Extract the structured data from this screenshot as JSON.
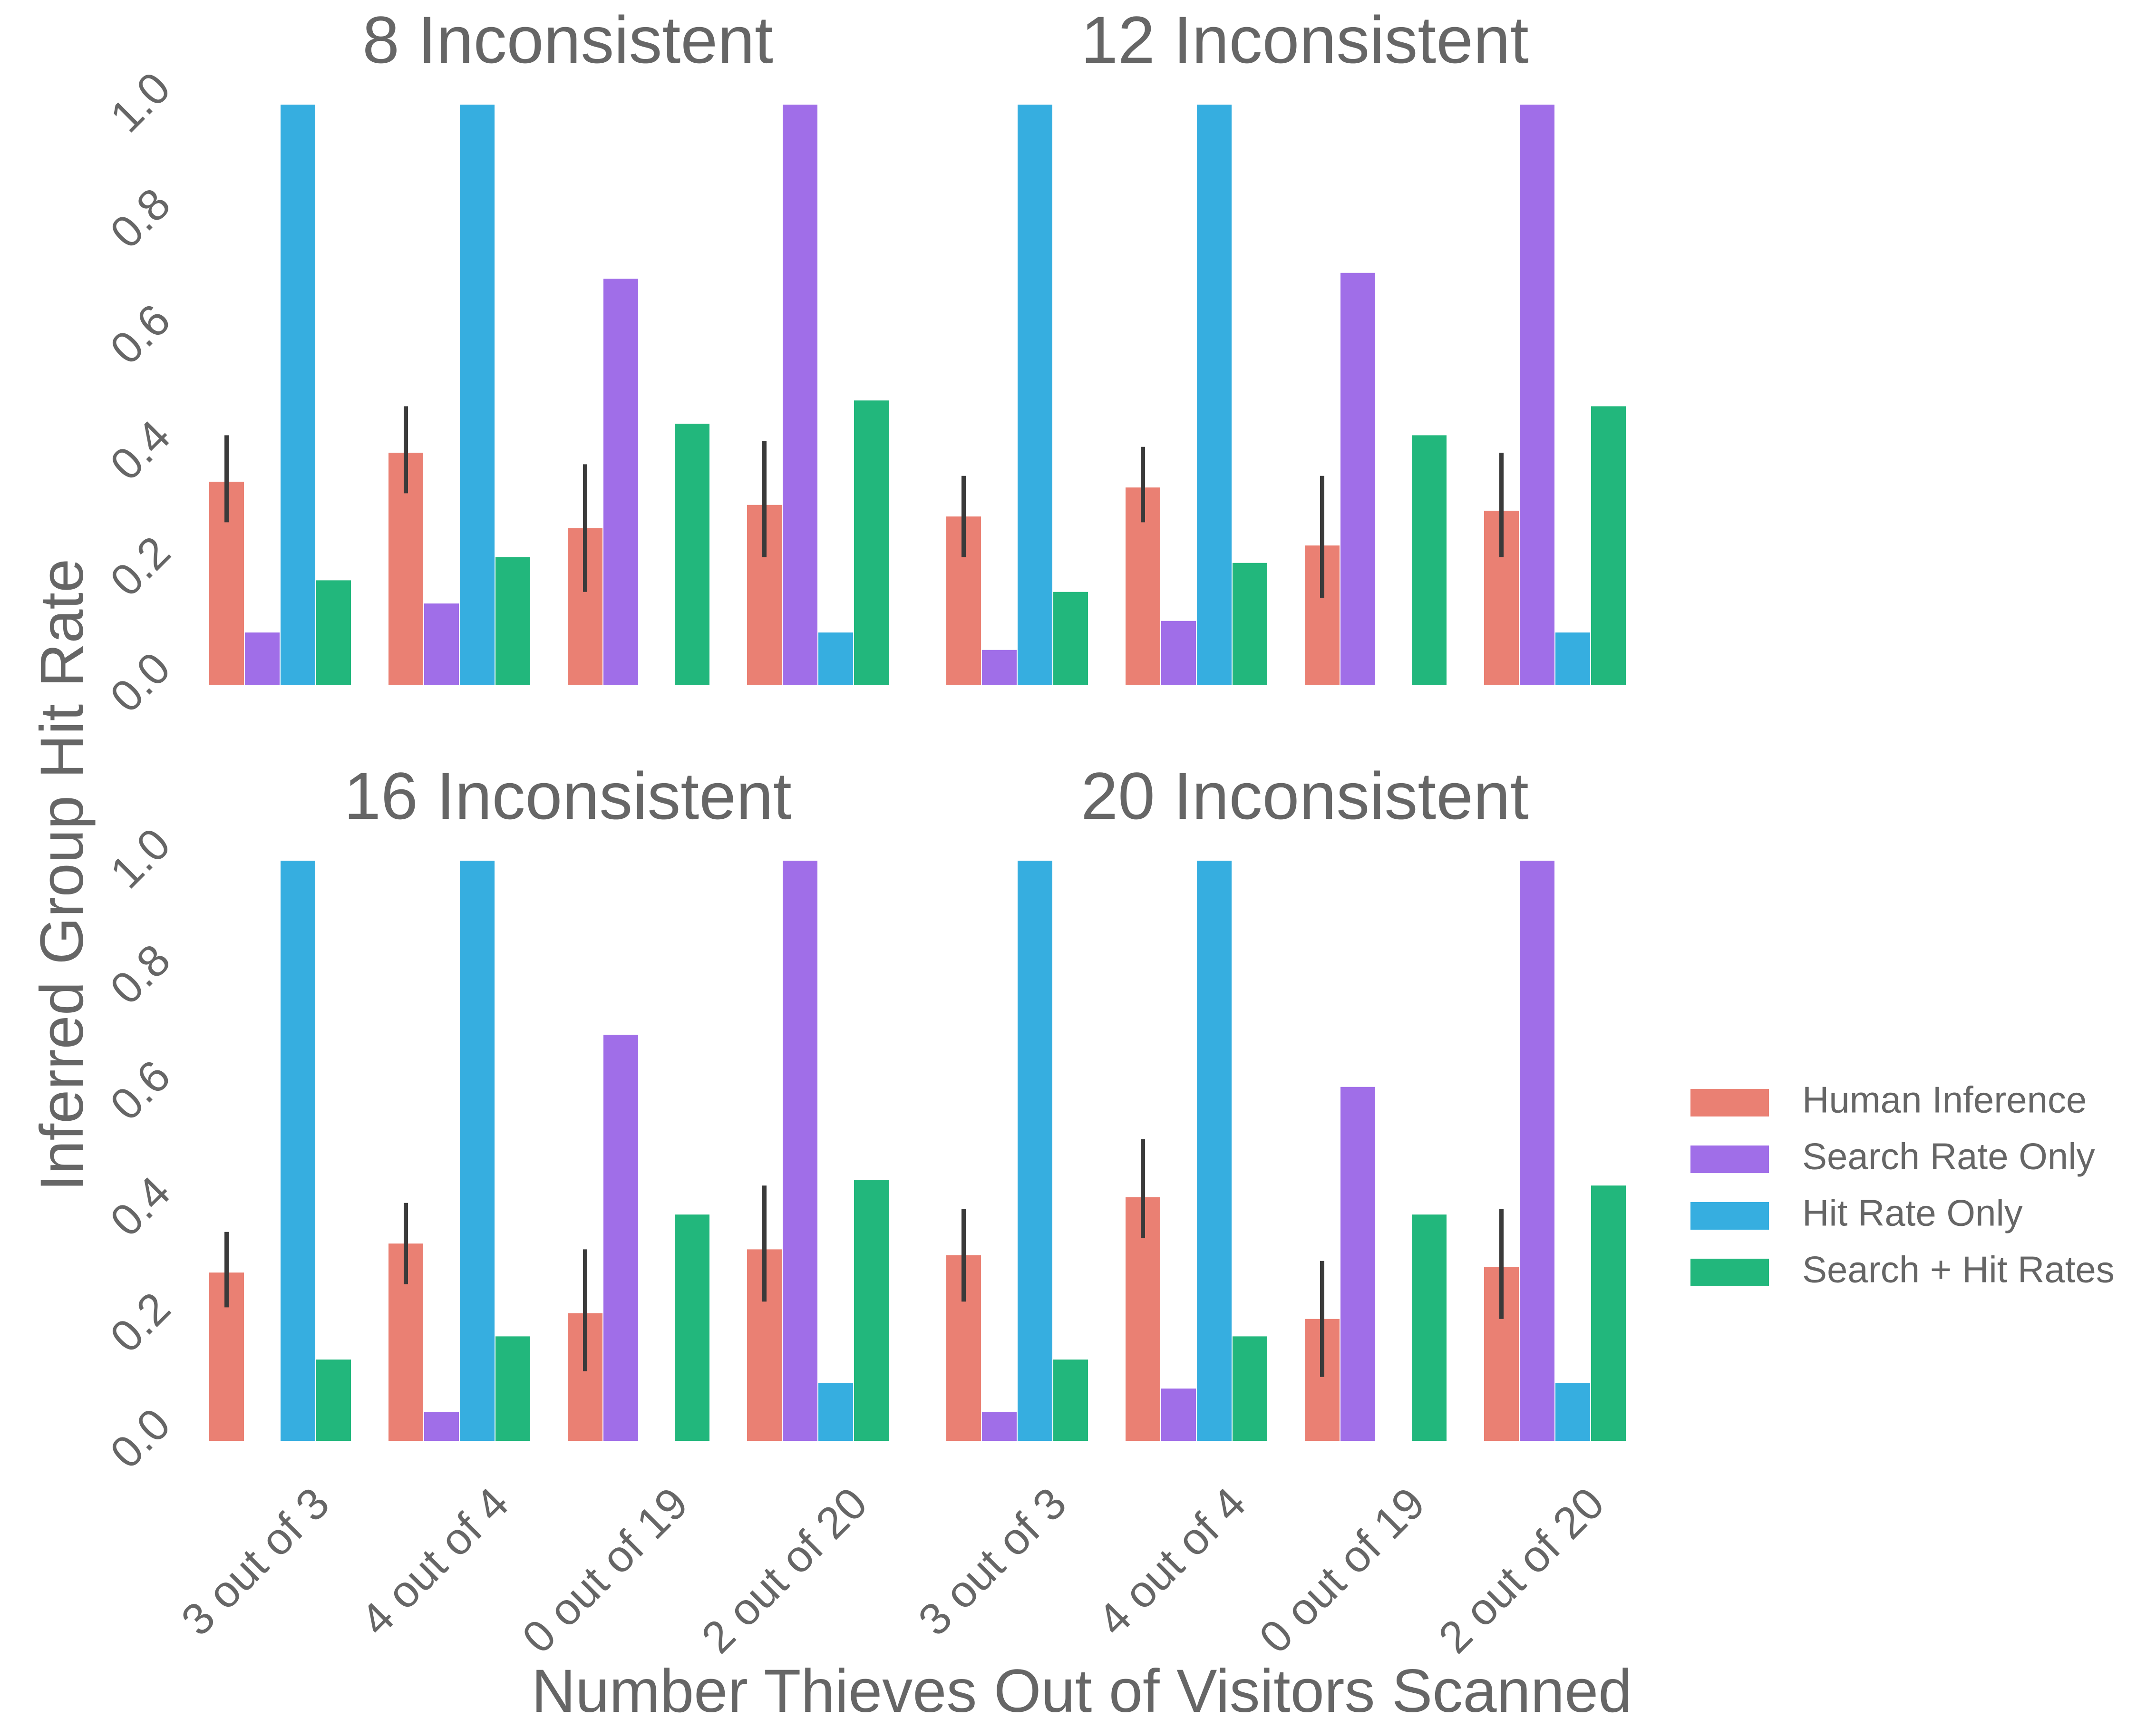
{
  "chart_data": {
    "type": "bar",
    "xlabel": "Number Thieves Out of Visitors Scanned",
    "ylabel": "Inferred Group Hit Rate",
    "ylim": [
      0,
      1
    ],
    "yticks": [
      "0.0",
      "0.2",
      "0.4",
      "0.6",
      "0.8",
      "1.0"
    ],
    "categories": [
      "3 out of 3",
      "4 out of 4",
      "0 out of 19",
      "2 out of 20"
    ],
    "grid": false,
    "legend_position": "right",
    "series_names": [
      "Human Inference",
      "Search Rate Only",
      "Hit Rate Only",
      "Search + Hit Rates"
    ],
    "colors": [
      "#EA8073",
      "#A06EE8",
      "#36AEE0",
      "#22B77C"
    ],
    "errorbar_color": "#3a3a3a",
    "panels": [
      {
        "title": "8 Inconsistent",
        "series": [
          {
            "values": [
              0.35,
              0.4,
              0.27,
              0.31
            ],
            "error_low": [
              0.28,
              0.33,
              0.16,
              0.22
            ],
            "error_high": [
              0.43,
              0.48,
              0.38,
              0.42
            ]
          },
          {
            "values": [
              0.09,
              0.14,
              0.7,
              1.0
            ]
          },
          {
            "values": [
              1.0,
              1.0,
              0.0,
              0.09
            ]
          },
          {
            "values": [
              0.18,
              0.22,
              0.45,
              0.49
            ]
          }
        ]
      },
      {
        "title": "12 Inconsistent",
        "series": [
          {
            "values": [
              0.29,
              0.34,
              0.24,
              0.3
            ],
            "error_low": [
              0.22,
              0.28,
              0.15,
              0.22
            ],
            "error_high": [
              0.36,
              0.41,
              0.36,
              0.4
            ]
          },
          {
            "values": [
              0.06,
              0.11,
              0.71,
              1.0
            ]
          },
          {
            "values": [
              1.0,
              1.0,
              0.0,
              0.09
            ]
          },
          {
            "values": [
              0.16,
              0.21,
              0.43,
              0.48
            ]
          }
        ]
      },
      {
        "title": "16 Inconsistent",
        "series": [
          {
            "values": [
              0.29,
              0.34,
              0.22,
              0.33
            ],
            "error_low": [
              0.23,
              0.27,
              0.12,
              0.24
            ],
            "error_high": [
              0.36,
              0.41,
              0.33,
              0.44
            ]
          },
          {
            "values": [
              0.0,
              0.05,
              0.7,
              1.0
            ]
          },
          {
            "values": [
              1.0,
              1.0,
              0.0,
              0.1
            ]
          },
          {
            "values": [
              0.14,
              0.18,
              0.39,
              0.45
            ]
          }
        ]
      },
      {
        "title": "20 Inconsistent",
        "series": [
          {
            "values": [
              0.32,
              0.42,
              0.21,
              0.3
            ],
            "error_low": [
              0.24,
              0.35,
              0.11,
              0.21
            ],
            "error_high": [
              0.4,
              0.52,
              0.31,
              0.4
            ]
          },
          {
            "values": [
              0.05,
              0.09,
              0.61,
              1.0
            ]
          },
          {
            "values": [
              1.0,
              1.0,
              0.0,
              0.1
            ]
          },
          {
            "values": [
              0.14,
              0.18,
              0.39,
              0.44
            ]
          }
        ]
      }
    ]
  }
}
